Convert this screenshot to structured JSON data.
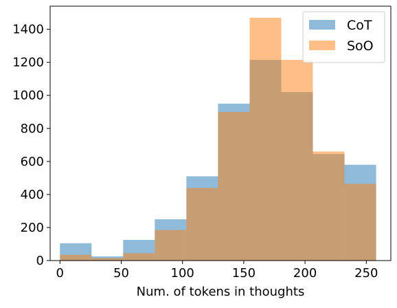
{
  "chart_data": {
    "type": "histogram",
    "xlabel": "Num. of tokens in thoughts",
    "ylabel": "",
    "xlim": [
      -8,
      270
    ],
    "ylim": [
      0,
      1540
    ],
    "xticks": [
      0,
      50,
      100,
      150,
      200,
      250
    ],
    "yticks": [
      0,
      200,
      400,
      600,
      800,
      1000,
      1200,
      1400
    ],
    "grid": false,
    "legend_position": "top-right",
    "bin_edges": [
      0,
      25.8,
      51.6,
      77.4,
      103.2,
      129,
      154.8,
      180.6,
      206.4,
      232.2,
      258
    ],
    "series": [
      {
        "name": "CoT",
        "color": "#1f77b4",
        "opacity": 0.5,
        "values": [
          105,
          25,
          125,
          250,
          510,
          950,
          1215,
          1020,
          645,
          580
        ]
      },
      {
        "name": "SoO",
        "color": "#ff7f0e",
        "opacity": 0.5,
        "values": [
          35,
          15,
          45,
          185,
          440,
          900,
          1470,
          1215,
          660,
          465
        ]
      }
    ]
  }
}
